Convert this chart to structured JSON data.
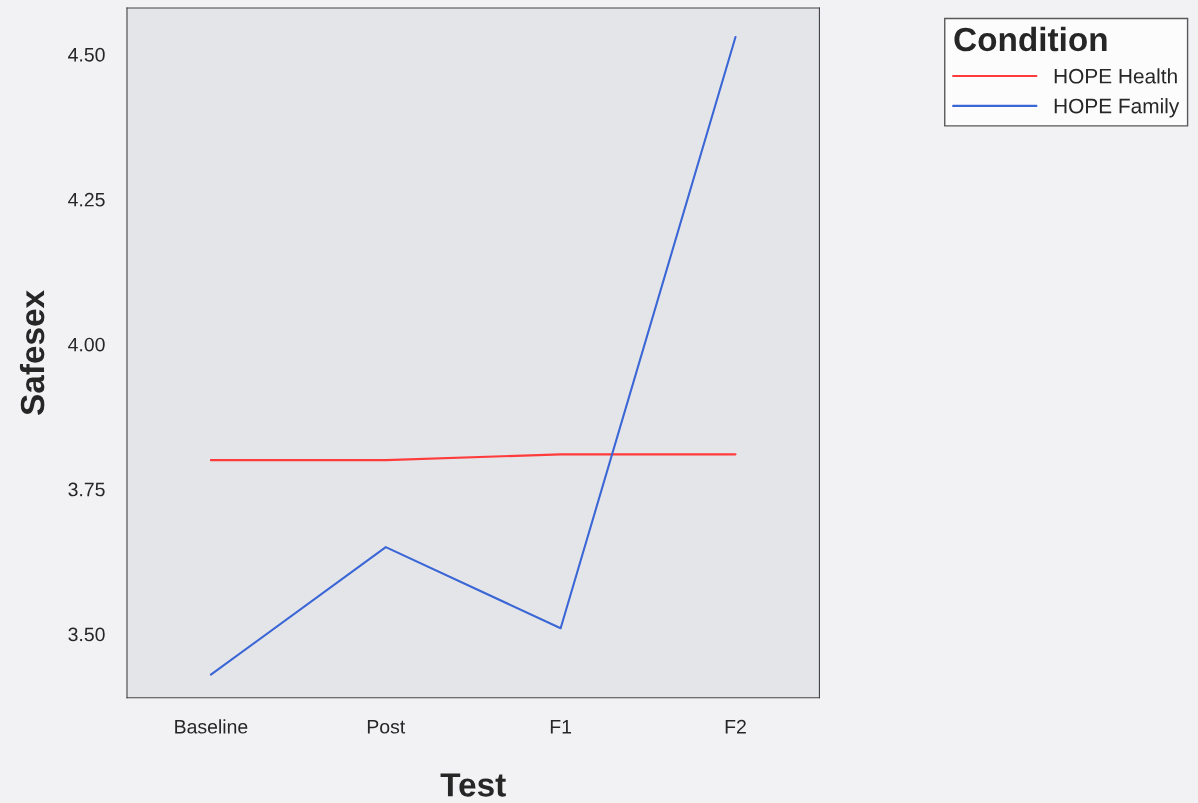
{
  "chart_data": {
    "type": "line",
    "xlabel": "Test",
    "ylabel": "Safesex",
    "legend_title": "Condition",
    "legend": "top right",
    "categories": [
      "Baseline",
      "Post",
      "F1",
      "F2"
    ],
    "series": [
      {
        "name": "HOPE Health",
        "color": "#ff3b3b",
        "values": [
          3.8,
          3.8,
          3.81,
          3.81
        ]
      },
      {
        "name": "HOPE Family",
        "color": "#3a66d6",
        "values": [
          3.43,
          3.65,
          3.51,
          4.53
        ]
      }
    ],
    "ylim": [
      3.39,
      4.58
    ],
    "yticks": [
      {
        "value": 3.5,
        "label": "3.50"
      },
      {
        "value": 3.75,
        "label": "3.75"
      },
      {
        "value": 4.0,
        "label": "4.00"
      },
      {
        "value": 4.25,
        "label": "4.25"
      },
      {
        "value": 4.5,
        "label": "4.50"
      }
    ],
    "grid": false
  }
}
